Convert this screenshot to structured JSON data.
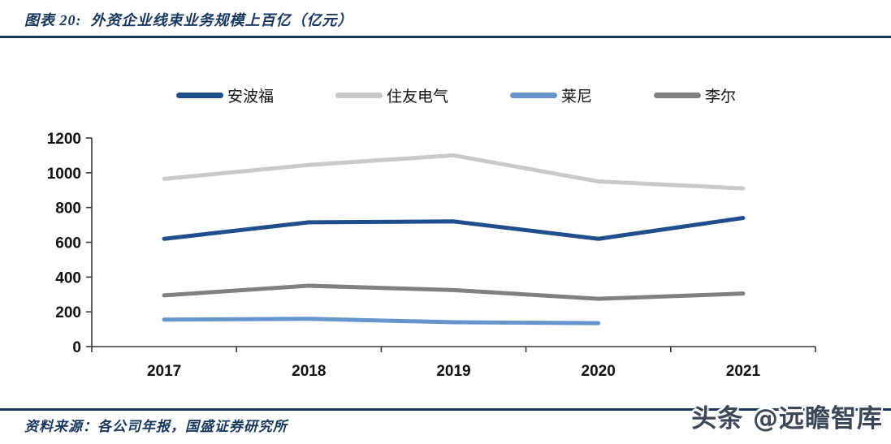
{
  "header": {
    "title": "图表 20:  外资企业线束业务规模上百亿（亿元）"
  },
  "footer": {
    "source": "资料来源：各公司年报，国盛证券研究所",
    "watermark": "头条 @远瞻智库"
  },
  "colors": {
    "accent_rule_and_text": "#17375E",
    "axis": "#3A3A3A",
    "tick_text": "#111111",
    "watermark_fill": "#3B4656"
  },
  "chart_data": {
    "type": "line",
    "title": "外资企业线束业务规模上百亿（亿元）",
    "x": [
      "2017",
      "2018",
      "2019",
      "2020",
      "2021"
    ],
    "series": [
      {
        "name": "安波福",
        "color": "#1F4E8C",
        "values": [
          620,
          715,
          720,
          620,
          740
        ]
      },
      {
        "name": "住友电气",
        "color": "#C9C9C9",
        "values": [
          965,
          1045,
          1100,
          950,
          910
        ]
      },
      {
        "name": "莱尼",
        "color": "#6694CE",
        "values": [
          155,
          160,
          140,
          135,
          null
        ]
      },
      {
        "name": "李尔",
        "color": "#808080",
        "values": [
          295,
          350,
          325,
          275,
          305
        ]
      }
    ],
    "ylim": [
      0,
      1200
    ],
    "yticks": [
      0,
      200,
      400,
      600,
      800,
      1000,
      1200
    ],
    "legend_position": "top",
    "grid": false
  }
}
